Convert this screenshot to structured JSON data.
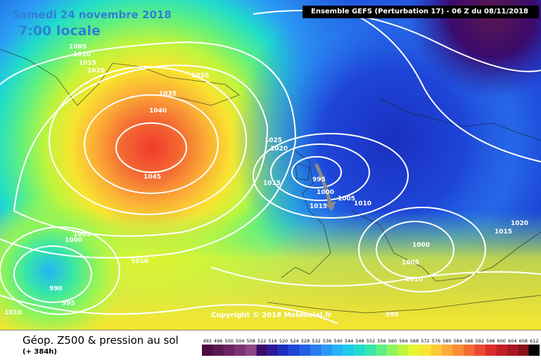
{
  "header": {
    "date": "Samedi 24 novembre 2018",
    "time": "7:00 locale",
    "run_info": "Ensemble GEFS  (Perturbation 17)  -  06 Z du 08/11/2018"
  },
  "copyright": "Copyright © 2018 Meteociel.fr",
  "footer": {
    "title": "Géop. Z500 & pression au sol",
    "subtitle": "(+ 384h)"
  },
  "legend": {
    "values": [
      "492",
      "496",
      "500",
      "504",
      "508",
      "512",
      "516",
      "520",
      "524",
      "528",
      "532",
      "536",
      "540",
      "544",
      "548",
      "552",
      "556",
      "560",
      "564",
      "568",
      "572",
      "576",
      "580",
      "584",
      "588",
      "592",
      "596",
      "600",
      "604",
      "608",
      "612"
    ],
    "colors": [
      "#4a0d3f",
      "#5a1850",
      "#6b2461",
      "#7b3473",
      "#8c4586",
      "#3b0a6b",
      "#2a1a9a",
      "#1a2fc0",
      "#1e46d8",
      "#2260e6",
      "#2a7cf0",
      "#2c97f5",
      "#24b4f5",
      "#1ccbe8",
      "#20dccc",
      "#35e6a8",
      "#5ef080",
      "#8ef45a",
      "#bdf53d",
      "#e6f52e",
      "#f8e530",
      "#fbca35",
      "#fbac36",
      "#f98d35",
      "#f46b33",
      "#ec4a30",
      "#dc2c2a",
      "#c41e25",
      "#a8161f",
      "#8a1018",
      "#000000"
    ]
  },
  "isobars": [
    {
      "text": "1005",
      "color": "white"
    },
    {
      "text": "1010",
      "color": "white"
    },
    {
      "text": "1015",
      "color": "white"
    },
    {
      "text": "1020",
      "color": "white"
    },
    {
      "text": "1030",
      "color": "white"
    },
    {
      "text": "1035",
      "color": "white"
    },
    {
      "text": "1040",
      "color": "white"
    },
    {
      "text": "1045",
      "color": "white"
    },
    {
      "text": "1025",
      "color": "white"
    },
    {
      "text": "1020",
      "color": "white"
    },
    {
      "text": "1015",
      "color": "white"
    },
    {
      "text": "995",
      "color": "white"
    },
    {
      "text": "1000",
      "color": "white"
    },
    {
      "text": "1005",
      "color": "white"
    },
    {
      "text": "1010",
      "color": "white"
    },
    {
      "text": "1015",
      "color": "white"
    },
    {
      "text": "1020",
      "color": "white"
    },
    {
      "text": "1000",
      "color": "white"
    },
    {
      "text": "1005",
      "color": "white"
    },
    {
      "text": "1010",
      "color": "white"
    },
    {
      "text": "1015",
      "color": "white"
    },
    {
      "text": "1005",
      "color": "white"
    },
    {
      "text": "1000",
      "color": "white"
    },
    {
      "text": "1010",
      "color": "white"
    },
    {
      "text": "990",
      "color": "white"
    },
    {
      "text": "995",
      "color": "white"
    },
    {
      "text": "1010",
      "color": "white"
    },
    {
      "text": "995",
      "color": "white"
    }
  ]
}
